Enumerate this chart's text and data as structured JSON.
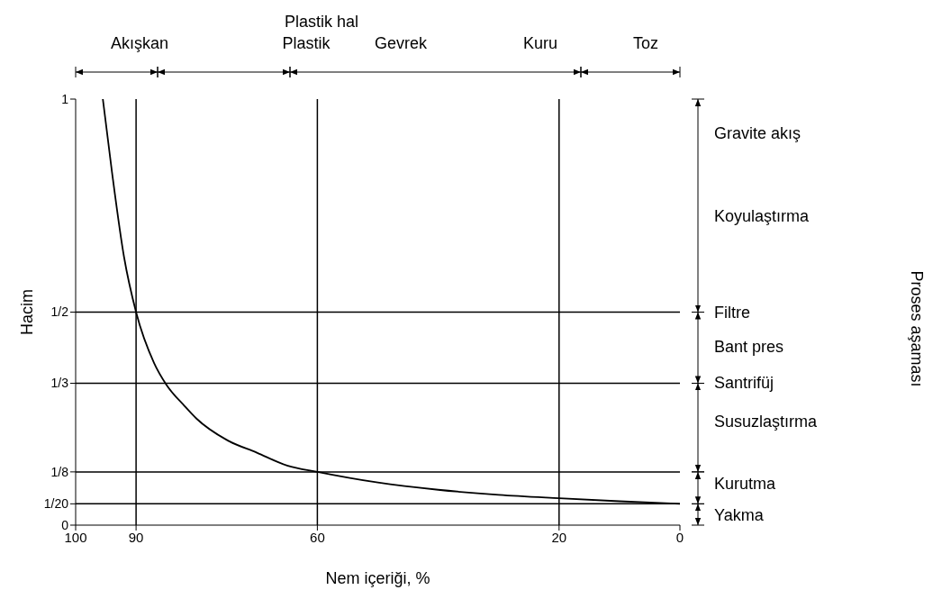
{
  "chart_data": {
    "type": "line",
    "xlabel": "Nem içeriği, %",
    "ylabel": "Hacim",
    "xlim": [
      100,
      0
    ],
    "xticks": [
      100,
      90,
      60,
      20,
      0
    ],
    "ylim": [
      0,
      1
    ],
    "yticks": [
      0,
      {
        "value": 0.05,
        "label": "1/20"
      },
      {
        "value": 0.125,
        "label": "1/8"
      },
      {
        "value": 0.333,
        "label": "1/3"
      },
      {
        "value": 0.5,
        "label": "1/2"
      },
      1
    ],
    "series": [
      {
        "color": "#000000",
        "x": [
          95.5,
          94,
          92,
          90,
          87,
          85,
          82,
          80,
          75,
          70,
          65,
          60,
          50,
          40,
          30,
          20,
          10,
          0
        ],
        "values": [
          1,
          0.83,
          0.63,
          0.5,
          0.38,
          0.33,
          0.28,
          0.25,
          0.2,
          0.17,
          0.14,
          0.125,
          0.1,
          0.083,
          0.071,
          0.063,
          0.056,
          0.05
        ]
      }
    ],
    "ref_lines": [
      {
        "axis": "x",
        "value": 90,
        "color": "#000000"
      },
      {
        "axis": "x",
        "value": 60,
        "color": "#000000"
      },
      {
        "axis": "x",
        "value": 20,
        "color": "#000000"
      },
      {
        "axis": "y",
        "value": 0.5,
        "color": "#000000"
      },
      {
        "axis": "y",
        "value": 0.333,
        "color": "#000000"
      },
      {
        "axis": "y",
        "value": 0.125,
        "color": "#000000"
      },
      {
        "axis": "y",
        "value": 0.05,
        "color": "#000000"
      }
    ],
    "annotations": [
      "Plastik hal",
      "Akışkan",
      "Plastik",
      "Gevrek",
      "Kuru",
      "Toz",
      "Gravite akış",
      "Koyulaştırma",
      "Filtre",
      "Bant pres",
      "Santrifüj",
      "Susuzlaştırma",
      "Kurutma",
      "Yakma",
      "Proses aşaması"
    ],
    "grid": false,
    "marker": "none",
    "line_style": "solid"
  }
}
